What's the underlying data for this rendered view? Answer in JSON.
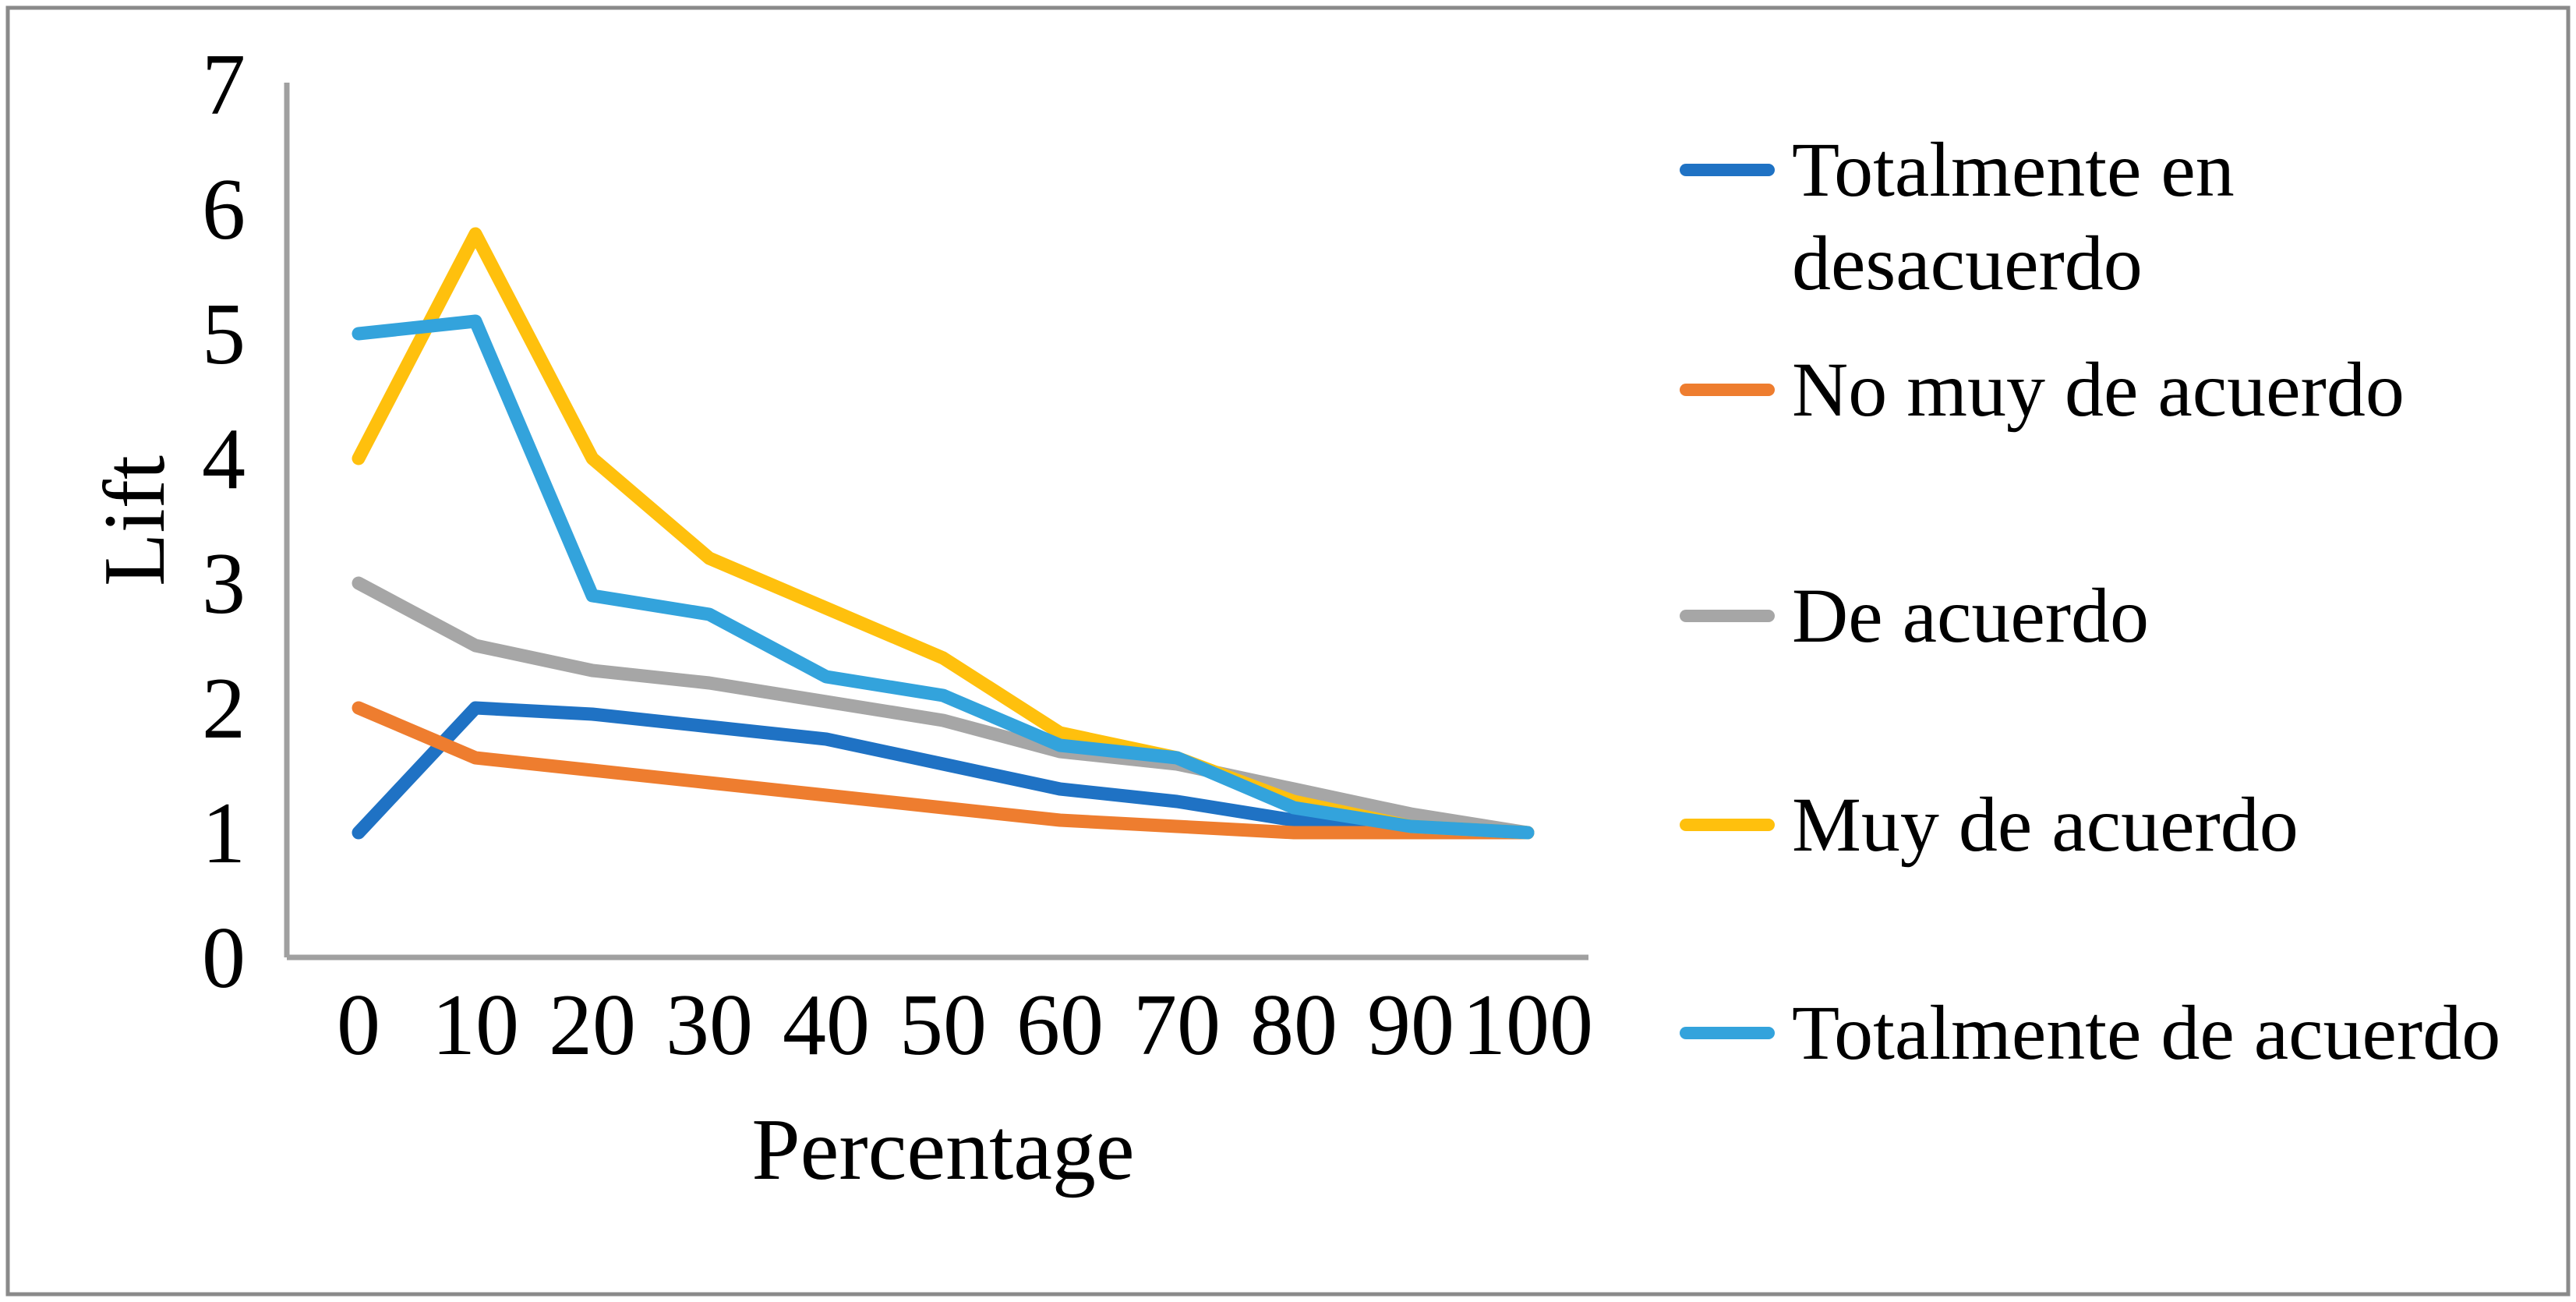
{
  "figure": {
    "background": "#FFFFFF",
    "border_color": "#8A8A8A",
    "axis_color": "#A0A0A0"
  },
  "chart_data": {
    "type": "line",
    "title": "",
    "xlabel": "Percentage",
    "ylabel": "Lift",
    "x": [
      0,
      10,
      20,
      30,
      40,
      50,
      60,
      70,
      80,
      90,
      100
    ],
    "xtick_labels": [
      "0",
      "10",
      "20",
      "30",
      "40",
      "50",
      "60",
      "70",
      "80",
      "90",
      "100"
    ],
    "yticks": [
      0,
      1,
      2,
      3,
      4,
      5,
      6,
      7
    ],
    "ylim": [
      0,
      7
    ],
    "xlim": [
      0,
      100
    ],
    "grid": false,
    "legend_position": "right",
    "series": [
      {
        "name": "Totalmente en desacuerdo",
        "color": "#1F72C4",
        "values": [
          1.0,
          2.0,
          1.95,
          1.85,
          1.75,
          1.55,
          1.35,
          1.25,
          1.1,
          1.05,
          1.0
        ]
      },
      {
        "name": "No muy de acuerdo",
        "color": "#EE7D2F",
        "values": [
          2.0,
          1.6,
          1.5,
          1.4,
          1.3,
          1.2,
          1.1,
          1.05,
          1.0,
          1.0,
          1.0
        ]
      },
      {
        "name": "De acuerdo",
        "color": "#A6A6A6",
        "values": [
          3.0,
          2.5,
          2.3,
          2.2,
          2.05,
          1.9,
          1.65,
          1.55,
          1.35,
          1.15,
          1.0
        ]
      },
      {
        "name": "Muy de acuerdo",
        "color": "#FFC00D",
        "values": [
          4.0,
          5.8,
          4.0,
          3.2,
          2.8,
          2.4,
          1.8,
          1.6,
          1.25,
          1.05,
          1.0
        ]
      },
      {
        "name": "Totalmente de acuerdo",
        "color": "#33A3DC",
        "values": [
          5.0,
          5.1,
          2.9,
          2.75,
          2.25,
          2.1,
          1.7,
          1.6,
          1.2,
          1.05,
          1.0
        ]
      }
    ]
  }
}
